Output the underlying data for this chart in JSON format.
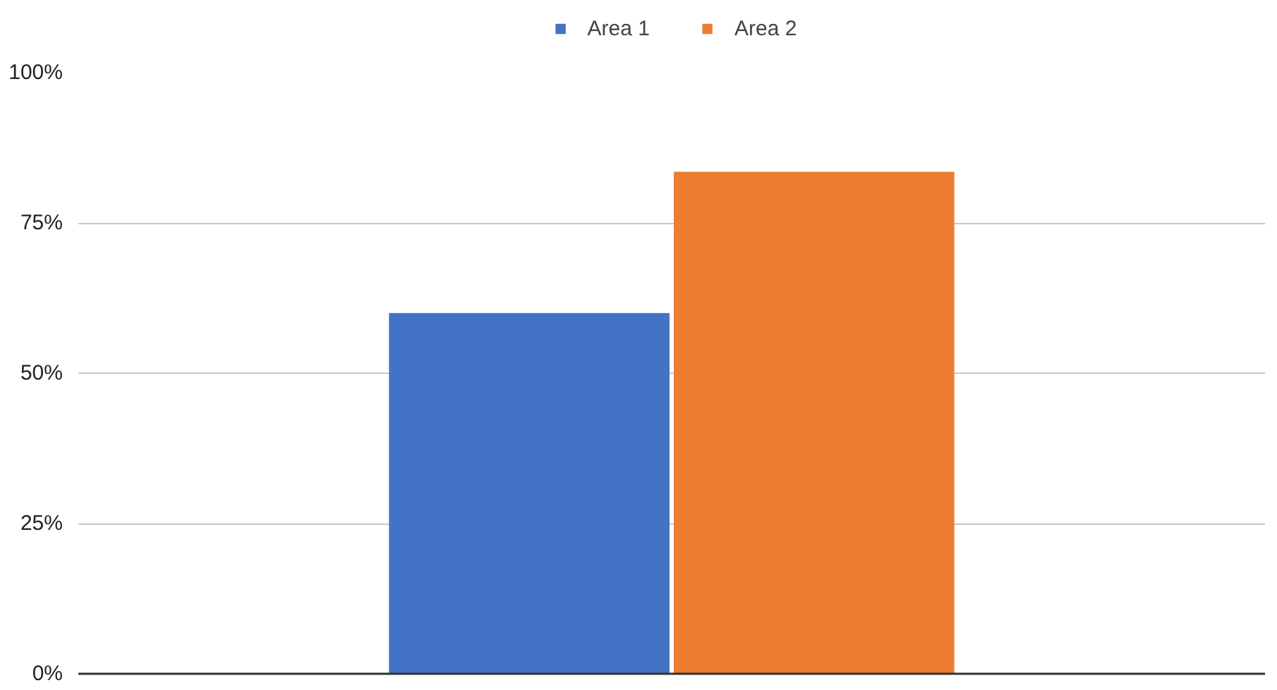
{
  "chart_data": {
    "type": "bar",
    "categories": [
      null
    ],
    "series": [
      {
        "name": "Area 1",
        "color": "#4472c4",
        "values": [
          60
        ]
      },
      {
        "name": "Area 2",
        "color": "#ed7d31",
        "values": [
          83.5
        ]
      }
    ],
    "ylim": [
      0,
      100
    ],
    "yticks": [
      {
        "value": 0,
        "label": "0%"
      },
      {
        "value": 25,
        "label": "25%"
      },
      {
        "value": 50,
        "label": "50%"
      },
      {
        "value": 75,
        "label": "75%"
      },
      {
        "value": 100,
        "label": "100%"
      }
    ],
    "grid": "y",
    "legend": "top",
    "tick_labels": "y"
  }
}
